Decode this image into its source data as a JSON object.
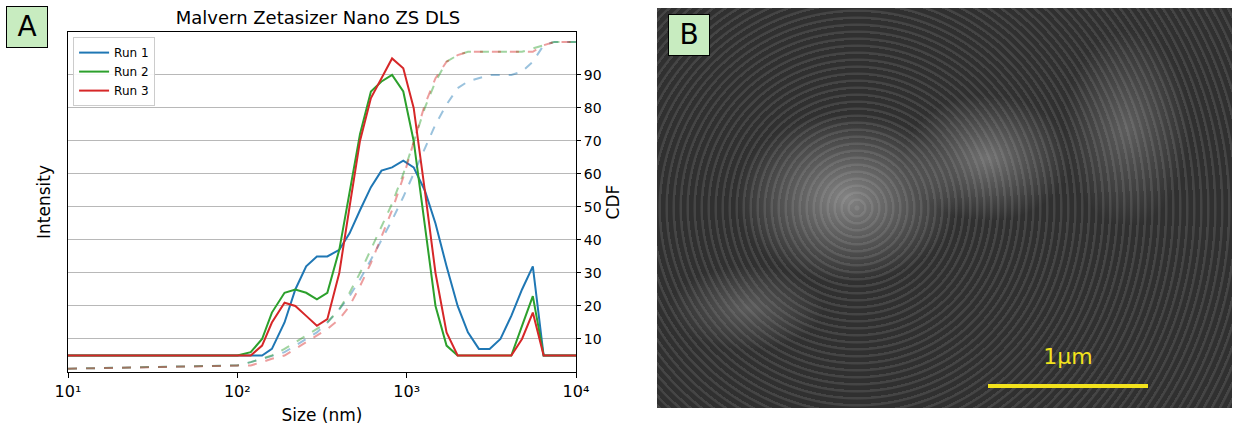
{
  "chart_data": {
    "type": "line",
    "title": "Malvern Zetasizer Nano ZS DLS",
    "x_label": "Size (nm)",
    "y_label": "Intensity",
    "y2_label": "CDF",
    "x": [
      10,
      100,
      120,
      140,
      160,
      190,
      220,
      255,
      295,
      340,
      400,
      460,
      530,
      615,
      710,
      820,
      955,
      1100,
      1280,
      1480,
      1720,
      2000,
      2300,
      2670,
      3090,
      3580,
      4150,
      4800,
      5560,
      6440,
      7460,
      10000
    ],
    "series": [
      {
        "name": "Run 1",
        "color": "#1f77b4",
        "axis": "y",
        "line_style": "solid",
        "values": [
          5,
          5,
          5,
          5,
          7,
          15,
          25,
          32,
          35,
          35,
          37,
          42,
          49,
          56,
          61,
          62,
          64,
          62,
          55,
          45,
          32,
          20,
          12,
          7,
          7,
          10,
          17,
          25,
          32,
          5,
          5,
          5
        ]
      },
      {
        "name": "Run 2",
        "color": "#2ca02c",
        "axis": "y",
        "line_style": "solid",
        "values": [
          5,
          5,
          6,
          10,
          18,
          24,
          25,
          24,
          22,
          24,
          37,
          55,
          72,
          85,
          88,
          90,
          85,
          70,
          45,
          20,
          8,
          5,
          5,
          5,
          5,
          5,
          5,
          14,
          23,
          5,
          5,
          5
        ]
      },
      {
        "name": "Run 3",
        "color": "#d62728",
        "axis": "y",
        "line_style": "solid",
        "values": [
          5,
          5,
          5,
          8,
          15,
          21,
          20,
          17,
          14,
          16,
          30,
          50,
          70,
          83,
          89,
          95,
          92,
          80,
          55,
          30,
          12,
          5,
          5,
          5,
          5,
          5,
          5,
          10,
          18,
          5,
          5,
          5
        ]
      },
      {
        "color": "#1f77b4",
        "axis": "y2",
        "line_style": "dashed",
        "values": [
          1,
          2,
          3,
          4,
          5,
          6,
          8,
          10,
          12,
          15,
          19,
          23,
          28,
          34,
          40,
          46,
          53,
          60,
          68,
          75,
          81,
          86,
          88,
          89,
          90,
          90,
          90,
          91,
          94,
          99,
          100,
          100
        ]
      },
      {
        "color": "#2ca02c",
        "axis": "y2",
        "line_style": "dashed",
        "values": [
          1,
          2,
          3,
          4,
          5,
          7,
          9,
          11,
          13,
          15,
          19,
          24,
          30,
          37,
          44,
          51,
          60,
          70,
          80,
          88,
          94,
          96,
          97,
          97,
          97,
          97,
          97,
          97,
          98,
          99,
          100,
          100
        ]
      },
      {
        "color": "#d62728",
        "axis": "y2",
        "line_style": "dashed",
        "values": [
          1,
          2,
          2,
          3,
          4,
          5,
          7,
          9,
          11,
          13,
          16,
          20,
          26,
          33,
          41,
          49,
          59,
          70,
          81,
          89,
          94,
          96,
          97,
          97,
          97,
          97,
          97,
          97,
          97,
          99,
          100,
          100
        ]
      }
    ],
    "xlim": [
      10,
      10000
    ],
    "xticks": [
      {
        "value": 10,
        "label": "10¹"
      },
      {
        "value": 100,
        "label": "10²"
      },
      {
        "value": 1000,
        "label": "10³"
      },
      {
        "value": 10000,
        "label": "10⁴"
      }
    ],
    "ylim": [
      0,
      103
    ],
    "yticks": [],
    "y2lim": [
      0,
      103
    ],
    "y2ticks": [
      10,
      20,
      30,
      40,
      50,
      60,
      70,
      80,
      90
    ],
    "log": "x",
    "grid": "y2",
    "legend": "upper left"
  },
  "panel_labels": [
    "A",
    "B"
  ],
  "image": {
    "scale_bar_label": "1µm"
  }
}
